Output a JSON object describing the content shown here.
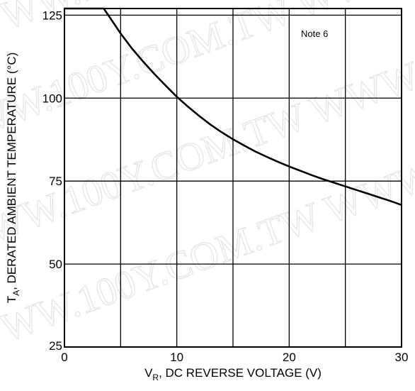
{
  "chart_data": {
    "type": "line",
    "xlabel": "V",
    "xlabel_sub": "R",
    "xlabel_rest": ", DC REVERSE VOLTAGE (V)",
    "ylabel": "T",
    "ylabel_sub": "A",
    "ylabel_rest": ", DERATED AMBIENT TEMPERATURE (°C)",
    "xlim": [
      0,
      30
    ],
    "ylim": [
      25,
      127
    ],
    "xticks": [
      0,
      10,
      20,
      30
    ],
    "yticks": [
      25,
      50,
      75,
      100,
      125
    ],
    "grid": true,
    "annotation": "Note 6",
    "series": [
      {
        "x": [
          0,
          1,
          2,
          3,
          3.5,
          4,
          5,
          6,
          7,
          8,
          9,
          10,
          11,
          12,
          13,
          14,
          15,
          16,
          17,
          18,
          19,
          20,
          21,
          22,
          23,
          24,
          25,
          26,
          27,
          28,
          29,
          30
        ],
        "y": [
          127,
          127,
          127,
          127,
          127,
          124.5,
          119.5,
          115,
          111,
          107.3,
          103.8,
          100.4,
          97.4,
          94.6,
          92.0,
          89.7,
          87.6,
          85.7,
          83.9,
          82.3,
          80.8,
          79.4,
          78.1,
          76.8,
          75.6,
          74.5,
          73.4,
          72.3,
          71.2,
          70.1,
          69.0,
          67.8
        ]
      }
    ]
  },
  "watermark": "WWW.100Y.COM.TW"
}
